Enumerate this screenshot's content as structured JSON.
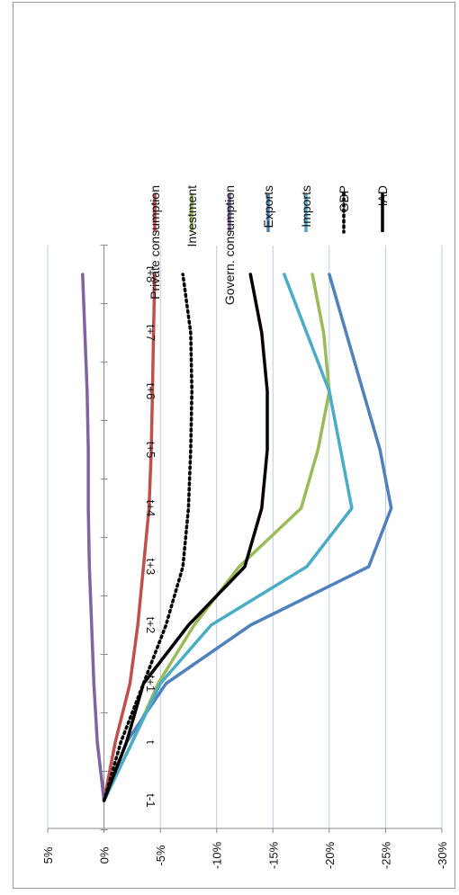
{
  "chart_data": {
    "type": "line",
    "categories": [
      "t-1",
      "t",
      "t+1",
      "t+2",
      "t+3",
      "t+4",
      "t+5",
      "t+6",
      "t+7",
      "t+8"
    ],
    "y_tick_labels": [
      "5%",
      "0%",
      "-5%",
      "-10%",
      "-15%",
      "-20%",
      "-25%",
      "-30%"
    ],
    "ylim": [
      -30,
      5
    ],
    "grid": true,
    "legend_position": "right",
    "orientation": "rotated 90 degrees clockwise",
    "series": [
      {
        "name": "Private consumption",
        "color": "#c0504d",
        "dash": "solid",
        "values": [
          0,
          -1.0,
          -2.3,
          -3.0,
          -3.5,
          -4.0,
          -4.2,
          -4.3,
          -4.4,
          -4.5
        ]
      },
      {
        "name": "Investment",
        "color": "#9bbb59",
        "dash": "solid",
        "values": [
          0,
          -2.5,
          -4.8,
          -8.0,
          -12.0,
          -17.5,
          -19.0,
          -20.0,
          -19.5,
          -18.5
        ]
      },
      {
        "name": "Govern. consumption",
        "color": "#8064a2",
        "dash": "solid",
        "values": [
          0,
          0.6,
          0.9,
          1.1,
          1.3,
          1.4,
          1.4,
          1.5,
          1.7,
          1.9
        ]
      },
      {
        "name": "Exports",
        "color": "#4f81bd",
        "dash": "solid",
        "values": [
          0,
          -2.0,
          -5.5,
          -13.0,
          -23.5,
          -25.5,
          -24.5,
          -23.0,
          -21.5,
          -20.0
        ]
      },
      {
        "name": "Imports",
        "color": "#4bacc6",
        "dash": "solid",
        "values": [
          0,
          -2.5,
          -5.0,
          -9.5,
          -18.0,
          -22.0,
          -21.0,
          -20.0,
          -18.0,
          -16.0
        ]
      },
      {
        "name": "GDP",
        "color": "#000000",
        "dash": "dotted",
        "values": [
          0,
          -1.5,
          -3.5,
          -5.5,
          -7.0,
          -7.5,
          -7.7,
          -7.8,
          -7.7,
          -7.0
        ]
      },
      {
        "name": "IAD",
        "color": "#000000",
        "dash": "solid",
        "values": [
          0,
          -2.0,
          -3.5,
          -7.5,
          -12.5,
          -14.0,
          -14.5,
          -14.5,
          -14.0,
          -13.0
        ]
      }
    ]
  }
}
